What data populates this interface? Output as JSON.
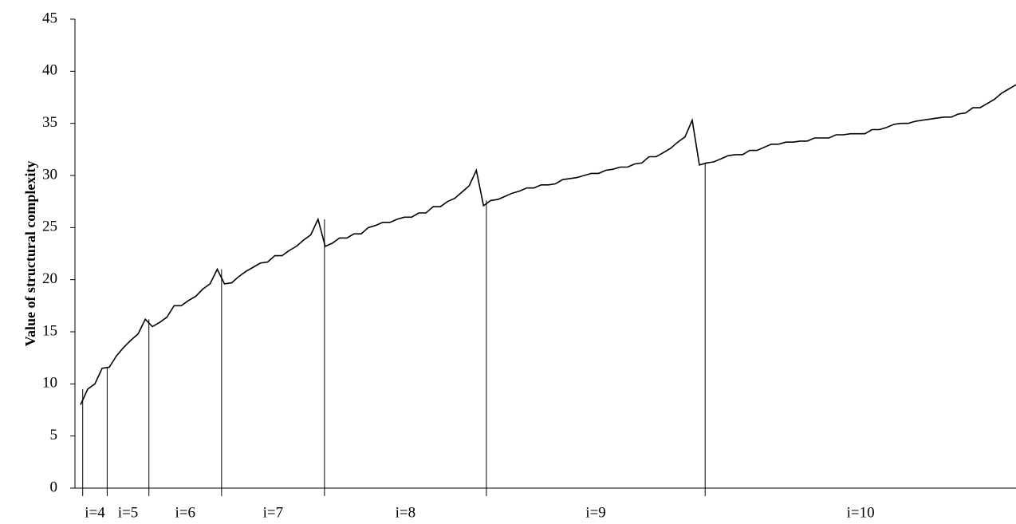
{
  "chart_data": {
    "type": "line",
    "y_label": "Value of structural complexity",
    "color": "#000000",
    "values": [
      8.0,
      9.5,
      10.0,
      11.5,
      11.6,
      12.7,
      13.5,
      14.2,
      14.8,
      16.2,
      15.5,
      15.9,
      16.4,
      17.5,
      17.5,
      18.0,
      18.4,
      19.1,
      19.6,
      21.0,
      19.6,
      19.7,
      20.3,
      20.8,
      21.2,
      21.6,
      21.7,
      22.3,
      22.3,
      22.8,
      23.2,
      23.8,
      24.3,
      25.8,
      23.2,
      23.5,
      24.0,
      24.0,
      24.4,
      24.4,
      25.0,
      25.2,
      25.5,
      25.5,
      25.8,
      26.0,
      26.0,
      26.4,
      26.4,
      27.0,
      27.0,
      27.5,
      27.8,
      28.4,
      29.0,
      30.5,
      27.1,
      27.6,
      27.7,
      28.0,
      28.3,
      28.5,
      28.8,
      28.8,
      29.1,
      29.1,
      29.2,
      29.6,
      29.7,
      29.8,
      30.0,
      30.2,
      30.2,
      30.5,
      30.6,
      30.8,
      30.8,
      31.1,
      31.2,
      31.8,
      31.8,
      32.2,
      32.6,
      33.2,
      33.7,
      35.3,
      31.0,
      31.2,
      31.3,
      31.6,
      31.9,
      32.0,
      32.0,
      32.4,
      32.4,
      32.7,
      33.0,
      33.0,
      33.2,
      33.2,
      33.3,
      33.3,
      33.6,
      33.6,
      33.6,
      33.9,
      33.9,
      34.0,
      34.0,
      34.0,
      34.4,
      34.4,
      34.6,
      34.9,
      35.0,
      35.0,
      35.2,
      35.3,
      35.4,
      35.5,
      35.6,
      35.6,
      35.9,
      36.0,
      36.5,
      36.5,
      36.9,
      37.3,
      37.9,
      38.3,
      38.7
    ],
    "boundaries": [
      0.3,
      3.7,
      9.5,
      19.6,
      33.9,
      56.4,
      86.8
    ],
    "region_labels": [
      "i=4",
      "i=5",
      "i=6",
      "i=7",
      "i=8",
      "i=9",
      "i=10"
    ],
    "ylim": [
      0,
      45
    ],
    "yticks": [
      0,
      5,
      10,
      15,
      20,
      25,
      30,
      35,
      40,
      45
    ]
  }
}
